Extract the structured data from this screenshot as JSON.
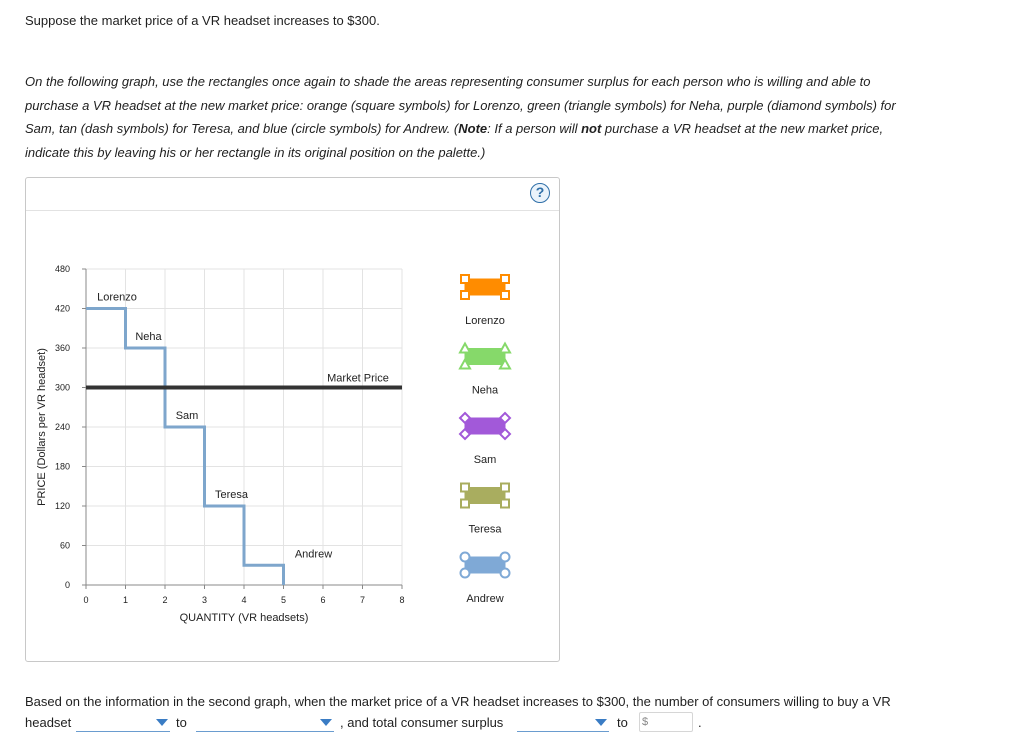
{
  "question": {
    "line1": "Suppose the market price of a VR headset increases to $300.",
    "instr_p1": "On the following graph, use the rectangles once again to shade the areas representing consumer surplus for each person who is willing and able to purchase a VR headset at the new market price: orange (square symbols) for Lorenzo, green (triangle symbols) for Neha, purple (diamond symbols) for Sam, tan (dash symbols) for Teresa, and blue (circle symbols) for Andrew. (",
    "note_label": "Note",
    "instr_p2": ": If a person will ",
    "not_word": "not",
    "instr_p3": " purchase a VR headset at the new market price, indicate this by leaving his or her rectangle in its original position on the palette.)"
  },
  "panel": {
    "help_label": "?"
  },
  "chart_data": {
    "type": "line",
    "title": "",
    "xlabel": "QUANTITY (VR headsets)",
    "ylabel": "PRICE (Dollars per VR headset)",
    "xlim": [
      0,
      8
    ],
    "ylim": [
      0,
      480
    ],
    "x_ticks": [
      0,
      1,
      2,
      3,
      4,
      5,
      6,
      7,
      8
    ],
    "y_ticks": [
      0,
      60,
      120,
      180,
      240,
      300,
      360,
      420,
      480
    ],
    "demand_steps": [
      {
        "name": "Lorenzo",
        "x_from": 0,
        "x_to": 1,
        "price": 420
      },
      {
        "name": "Neha",
        "x_from": 1,
        "x_to": 2,
        "price": 360
      },
      {
        "name": "Sam",
        "x_from": 2,
        "x_to": 3,
        "price": 240
      },
      {
        "name": "Teresa",
        "x_from": 3,
        "x_to": 4,
        "price": 120
      },
      {
        "name": "Andrew",
        "x_from": 4,
        "x_to": 5,
        "price": 30
      }
    ],
    "market_price": {
      "label": "Market Price",
      "value": 300
    },
    "colors": {
      "demand": "#7ea6cc",
      "market": "#333333",
      "grid": "#e3e3e3"
    }
  },
  "palette": [
    {
      "name": "Lorenzo",
      "color": "#ff8c00",
      "symbol": "square"
    },
    {
      "name": "Neha",
      "color": "#86d96a",
      "symbol": "triangle"
    },
    {
      "name": "Sam",
      "color": "#a259d9",
      "symbol": "diamond"
    },
    {
      "name": "Teresa",
      "color": "#a9ad5f",
      "symbol": "dash"
    },
    {
      "name": "Andrew",
      "color": "#7fa9d6",
      "symbol": "circle"
    }
  ],
  "bottom": {
    "sentence1": "Based on the information in the second graph, when the market price of a VR headset increases to $300, the number of consumers willing to buy a VR",
    "word_headset": "headset",
    "word_to1": "to",
    "word_and": ", and total consumer surplus",
    "word_to2": "to",
    "dollar": "$",
    "period": "."
  }
}
